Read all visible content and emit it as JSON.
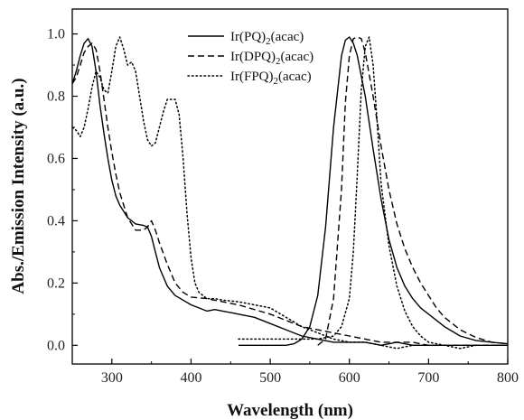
{
  "chart_data": {
    "type": "line",
    "xlabel": "Wavelength (nm)",
    "ylabel": "Abs./Emission Intensity (a.u.)",
    "xlim": [
      250,
      800
    ],
    "ylim": [
      -0.06,
      1.08
    ],
    "xticks": [
      300,
      400,
      500,
      600,
      700,
      800
    ],
    "xtick_labels": [
      "300",
      "400",
      "500",
      "600",
      "700",
      "800"
    ],
    "yticks": [
      0.0,
      0.2,
      0.4,
      0.6,
      0.8,
      1.0
    ],
    "ytick_labels": [
      "0.0",
      "0.2",
      "0.4",
      "0.6",
      "0.8",
      "1.0"
    ],
    "grid": false,
    "legend_position": "top-center",
    "series": [
      {
        "name": "Ir(PQ)2(acac)",
        "name_main": "Ir(PQ)",
        "name_sub": "2",
        "name_suffix": "(acac)",
        "style": "solid",
        "color": "#000000",
        "segments": [
          {
            "x": [
              250,
              255,
              260,
              265,
              270,
              275,
              280,
              285,
              290,
              295,
              300,
              305,
              310,
              315,
              320,
              330,
              340,
              345,
              350,
              355,
              360,
              370,
              380,
              390,
              400,
              410,
              420,
              430,
              440,
              450,
              460,
              480,
              500,
              520,
              540,
              560,
              580,
              600,
              620,
              640,
              660,
              680,
              700,
              720,
              740,
              760,
              780,
              800
            ],
            "y": [
              0.84,
              0.88,
              0.93,
              0.97,
              0.985,
              0.96,
              0.88,
              0.77,
              0.68,
              0.6,
              0.53,
              0.48,
              0.45,
              0.43,
              0.41,
              0.39,
              0.385,
              0.38,
              0.35,
              0.3,
              0.25,
              0.19,
              0.16,
              0.145,
              0.13,
              0.12,
              0.11,
              0.115,
              0.11,
              0.105,
              0.1,
              0.09,
              0.07,
              0.05,
              0.03,
              0.02,
              0.01,
              0.01,
              0.01,
              0.0,
              0.01,
              0.0,
              0.0,
              0.0,
              0.0,
              0.0,
              0.0,
              0.0
            ]
          },
          {
            "x": [
              460,
              480,
              500,
              520,
              530,
              540,
              550,
              560,
              570,
              580,
              590,
              595,
              600,
              605,
              610,
              620,
              630,
              640,
              650,
              660,
              670,
              680,
              690,
              700,
              720,
              740,
              760,
              780,
              800
            ],
            "y": [
              0.0,
              0.0,
              0.0,
              0.0,
              0.005,
              0.02,
              0.06,
              0.16,
              0.38,
              0.7,
              0.93,
              0.98,
              0.99,
              0.97,
              0.93,
              0.8,
              0.63,
              0.47,
              0.34,
              0.25,
              0.19,
              0.15,
              0.12,
              0.1,
              0.06,
              0.03,
              0.015,
              0.01,
              0.005
            ]
          }
        ]
      },
      {
        "name": "Ir(DPQ)2(acac)",
        "name_main": "Ir(DPQ)",
        "name_sub": "2",
        "name_suffix": "(acac)",
        "style": "dashed",
        "color": "#000000",
        "segments": [
          {
            "x": [
              250,
              255,
              260,
              265,
              270,
              275,
              280,
              285,
              290,
              295,
              300,
              305,
              310,
              320,
              330,
              340,
              345,
              350,
              355,
              360,
              370,
              380,
              390,
              400,
              420,
              440,
              460,
              480,
              500,
              520,
              540,
              560,
              580,
              600,
              620,
              640,
              660,
              680,
              700,
              720,
              740,
              760,
              780,
              800
            ],
            "y": [
              0.84,
              0.86,
              0.9,
              0.94,
              0.96,
              0.97,
              0.95,
              0.88,
              0.79,
              0.7,
              0.62,
              0.55,
              0.49,
              0.41,
              0.37,
              0.37,
              0.38,
              0.4,
              0.37,
              0.33,
              0.26,
              0.2,
              0.17,
              0.155,
              0.15,
              0.14,
              0.13,
              0.115,
              0.1,
              0.08,
              0.06,
              0.05,
              0.04,
              0.03,
              0.02,
              0.01,
              0.01,
              0.01,
              0.0,
              0.0,
              0.0,
              0.0,
              0.0,
              0.0
            ]
          },
          {
            "x": [
              560,
              570,
              580,
              590,
              595,
              600,
              605,
              610,
              615,
              620,
              630,
              640,
              650,
              660,
              670,
              680,
              690,
              700,
              710,
              720,
              740,
              760,
              780,
              800
            ],
            "y": [
              0.0,
              0.02,
              0.15,
              0.5,
              0.78,
              0.93,
              0.985,
              0.99,
              0.985,
              0.94,
              0.8,
              0.64,
              0.5,
              0.39,
              0.31,
              0.25,
              0.2,
              0.16,
              0.12,
              0.09,
              0.05,
              0.025,
              0.01,
              0.005
            ]
          }
        ]
      },
      {
        "name": "Ir(FPQ)2(acac)",
        "name_main": "Ir(FPQ)",
        "name_sub": "2",
        "name_suffix": "(acac)",
        "style": "dotted",
        "color": "#000000",
        "segments": [
          {
            "x": [
              250,
              255,
              260,
              265,
              270,
              275,
              280,
              285,
              290,
              295,
              300,
              305,
              310,
              315,
              320,
              325,
              330,
              335,
              340,
              345,
              350,
              355,
              360,
              365,
              370,
              375,
              380,
              385,
              390,
              395,
              400,
              405,
              410,
              420,
              430,
              440,
              460,
              480,
              500,
              520,
              540,
              560,
              580,
              600,
              620,
              640,
              660,
              680,
              700
            ],
            "y": [
              0.7,
              0.69,
              0.67,
              0.7,
              0.76,
              0.83,
              0.88,
              0.86,
              0.82,
              0.81,
              0.88,
              0.96,
              0.99,
              0.95,
              0.9,
              0.91,
              0.88,
              0.8,
              0.72,
              0.66,
              0.64,
              0.65,
              0.7,
              0.75,
              0.79,
              0.79,
              0.79,
              0.74,
              0.6,
              0.42,
              0.28,
              0.2,
              0.17,
              0.15,
              0.15,
              0.145,
              0.14,
              0.13,
              0.12,
              0.09,
              0.06,
              0.04,
              0.02,
              0.01,
              0.01,
              0.0,
              -0.01,
              0.0,
              0.0
            ]
          },
          {
            "x": [
              460,
              480,
              500,
              520,
              540,
              560,
              580,
              590,
              600,
              605,
              610,
              615,
              620,
              625,
              630,
              635,
              640,
              650,
              660,
              670,
              680,
              690,
              700,
              720,
              740,
              760,
              780,
              800
            ],
            "y": [
              0.02,
              0.02,
              0.02,
              0.02,
              0.02,
              0.02,
              0.03,
              0.06,
              0.15,
              0.3,
              0.55,
              0.82,
              0.96,
              0.99,
              0.9,
              0.72,
              0.52,
              0.32,
              0.19,
              0.11,
              0.06,
              0.03,
              0.01,
              0.0,
              -0.01,
              0.0,
              0.0,
              0.0
            ]
          }
        ]
      }
    ]
  }
}
